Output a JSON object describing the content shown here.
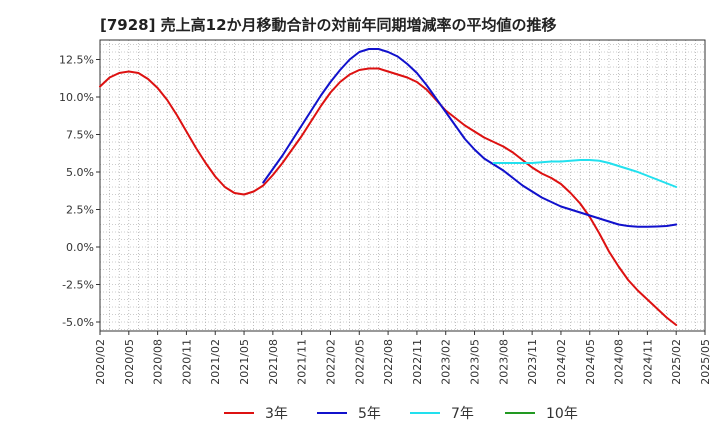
{
  "chart_data": {
    "type": "line",
    "title": "[7928]  売上高12か月移動合計の対前年同期増減率の平均値の推移",
    "xlabel": "",
    "ylabel": "",
    "x_ticks": [
      "2020/02",
      "2020/05",
      "2020/08",
      "2020/11",
      "2021/02",
      "2021/05",
      "2021/08",
      "2021/11",
      "2022/02",
      "2022/05",
      "2022/08",
      "2022/11",
      "2023/02",
      "2023/05",
      "2023/08",
      "2023/11",
      "2024/02",
      "2024/05",
      "2024/08",
      "2024/11",
      "2025/02",
      "2025/05"
    ],
    "y_ticks": [
      "12.5%",
      "10.0%",
      "7.5%",
      "5.0%",
      "2.5%",
      "0.0%",
      "-2.5%",
      "-5.0%"
    ],
    "y_tick_values": [
      12.5,
      10.0,
      7.5,
      5.0,
      2.5,
      0.0,
      -2.5,
      -5.0
    ],
    "ylim": [
      -5.6,
      13.8
    ],
    "grid": true,
    "legend_position": "bottom",
    "series": [
      {
        "name": "3年",
        "color": "#dd1111",
        "points": [
          [
            "2020/02",
            10.7
          ],
          [
            "2020/03",
            11.3
          ],
          [
            "2020/04",
            11.6
          ],
          [
            "2020/05",
            11.7
          ],
          [
            "2020/06",
            11.6
          ],
          [
            "2020/07",
            11.2
          ],
          [
            "2020/08",
            10.6
          ],
          [
            "2020/09",
            9.8
          ],
          [
            "2020/10",
            8.8
          ],
          [
            "2020/11",
            7.7
          ],
          [
            "2020/12",
            6.6
          ],
          [
            "2021/01",
            5.6
          ],
          [
            "2021/02",
            4.7
          ],
          [
            "2021/03",
            4.0
          ],
          [
            "2021/04",
            3.6
          ],
          [
            "2021/05",
            3.5
          ],
          [
            "2021/06",
            3.7
          ],
          [
            "2021/07",
            4.1
          ],
          [
            "2021/08",
            4.8
          ],
          [
            "2021/09",
            5.6
          ],
          [
            "2021/10",
            6.5
          ],
          [
            "2021/11",
            7.4
          ],
          [
            "2021/12",
            8.4
          ],
          [
            "2022/01",
            9.4
          ],
          [
            "2022/02",
            10.3
          ],
          [
            "2022/03",
            11.0
          ],
          [
            "2022/04",
            11.5
          ],
          [
            "2022/05",
            11.8
          ],
          [
            "2022/06",
            11.9
          ],
          [
            "2022/07",
            11.9
          ],
          [
            "2022/08",
            11.7
          ],
          [
            "2022/09",
            11.5
          ],
          [
            "2022/10",
            11.3
          ],
          [
            "2022/11",
            11.0
          ],
          [
            "2022/12",
            10.5
          ],
          [
            "2023/01",
            9.8
          ],
          [
            "2023/02",
            9.1
          ],
          [
            "2023/03",
            8.6
          ],
          [
            "2023/04",
            8.1
          ],
          [
            "2023/05",
            7.7
          ],
          [
            "2023/06",
            7.3
          ],
          [
            "2023/07",
            7.0
          ],
          [
            "2023/08",
            6.7
          ],
          [
            "2023/09",
            6.3
          ],
          [
            "2023/10",
            5.8
          ],
          [
            "2023/11",
            5.3
          ],
          [
            "2023/12",
            4.9
          ],
          [
            "2024/01",
            4.6
          ],
          [
            "2024/02",
            4.2
          ],
          [
            "2024/03",
            3.6
          ],
          [
            "2024/04",
            2.9
          ],
          [
            "2024/05",
            2.0
          ],
          [
            "2024/06",
            0.9
          ],
          [
            "2024/07",
            -0.3
          ],
          [
            "2024/08",
            -1.3
          ],
          [
            "2024/09",
            -2.2
          ],
          [
            "2024/10",
            -2.9
          ],
          [
            "2024/11",
            -3.5
          ],
          [
            "2024/12",
            -4.1
          ],
          [
            "2025/01",
            -4.7
          ],
          [
            "2025/02",
            -5.2
          ]
        ]
      },
      {
        "name": "5年",
        "color": "#1111cc",
        "points": [
          [
            "2021/07",
            4.3
          ],
          [
            "2021/08",
            5.2
          ],
          [
            "2021/09",
            6.1
          ],
          [
            "2021/10",
            7.1
          ],
          [
            "2021/11",
            8.1
          ],
          [
            "2021/12",
            9.1
          ],
          [
            "2022/01",
            10.1
          ],
          [
            "2022/02",
            11.0
          ],
          [
            "2022/03",
            11.8
          ],
          [
            "2022/04",
            12.5
          ],
          [
            "2022/05",
            13.0
          ],
          [
            "2022/06",
            13.2
          ],
          [
            "2022/07",
            13.2
          ],
          [
            "2022/08",
            13.0
          ],
          [
            "2022/09",
            12.7
          ],
          [
            "2022/10",
            12.2
          ],
          [
            "2022/11",
            11.6
          ],
          [
            "2022/12",
            10.8
          ],
          [
            "2023/01",
            9.9
          ],
          [
            "2023/02",
            9.0
          ],
          [
            "2023/03",
            8.1
          ],
          [
            "2023/04",
            7.2
          ],
          [
            "2023/05",
            6.5
          ],
          [
            "2023/06",
            5.9
          ],
          [
            "2023/07",
            5.5
          ],
          [
            "2023/08",
            5.1
          ],
          [
            "2023/09",
            4.6
          ],
          [
            "2023/10",
            4.1
          ],
          [
            "2023/11",
            3.7
          ],
          [
            "2023/12",
            3.3
          ],
          [
            "2024/01",
            3.0
          ],
          [
            "2024/02",
            2.7
          ],
          [
            "2024/03",
            2.5
          ],
          [
            "2024/04",
            2.3
          ],
          [
            "2024/05",
            2.1
          ],
          [
            "2024/06",
            1.9
          ],
          [
            "2024/07",
            1.7
          ],
          [
            "2024/08",
            1.5
          ],
          [
            "2024/09",
            1.4
          ],
          [
            "2024/10",
            1.35
          ],
          [
            "2024/11",
            1.35
          ],
          [
            "2024/12",
            1.37
          ],
          [
            "2025/01",
            1.4
          ],
          [
            "2025/02",
            1.5
          ]
        ]
      },
      {
        "name": "7年",
        "color": "#22e0ee",
        "points": [
          [
            "2023/07",
            5.6
          ],
          [
            "2023/08",
            5.6
          ],
          [
            "2023/09",
            5.6
          ],
          [
            "2023/10",
            5.6
          ],
          [
            "2023/11",
            5.6
          ],
          [
            "2023/12",
            5.65
          ],
          [
            "2024/01",
            5.7
          ],
          [
            "2024/02",
            5.7
          ],
          [
            "2024/03",
            5.75
          ],
          [
            "2024/04",
            5.8
          ],
          [
            "2024/05",
            5.8
          ],
          [
            "2024/06",
            5.75
          ],
          [
            "2024/07",
            5.6
          ],
          [
            "2024/08",
            5.4
          ],
          [
            "2024/09",
            5.2
          ],
          [
            "2024/10",
            5.0
          ],
          [
            "2024/11",
            4.75
          ],
          [
            "2024/12",
            4.5
          ],
          [
            "2025/01",
            4.25
          ],
          [
            "2025/02",
            4.0
          ]
        ]
      },
      {
        "name": "10年",
        "color": "#229922",
        "points": []
      }
    ]
  }
}
